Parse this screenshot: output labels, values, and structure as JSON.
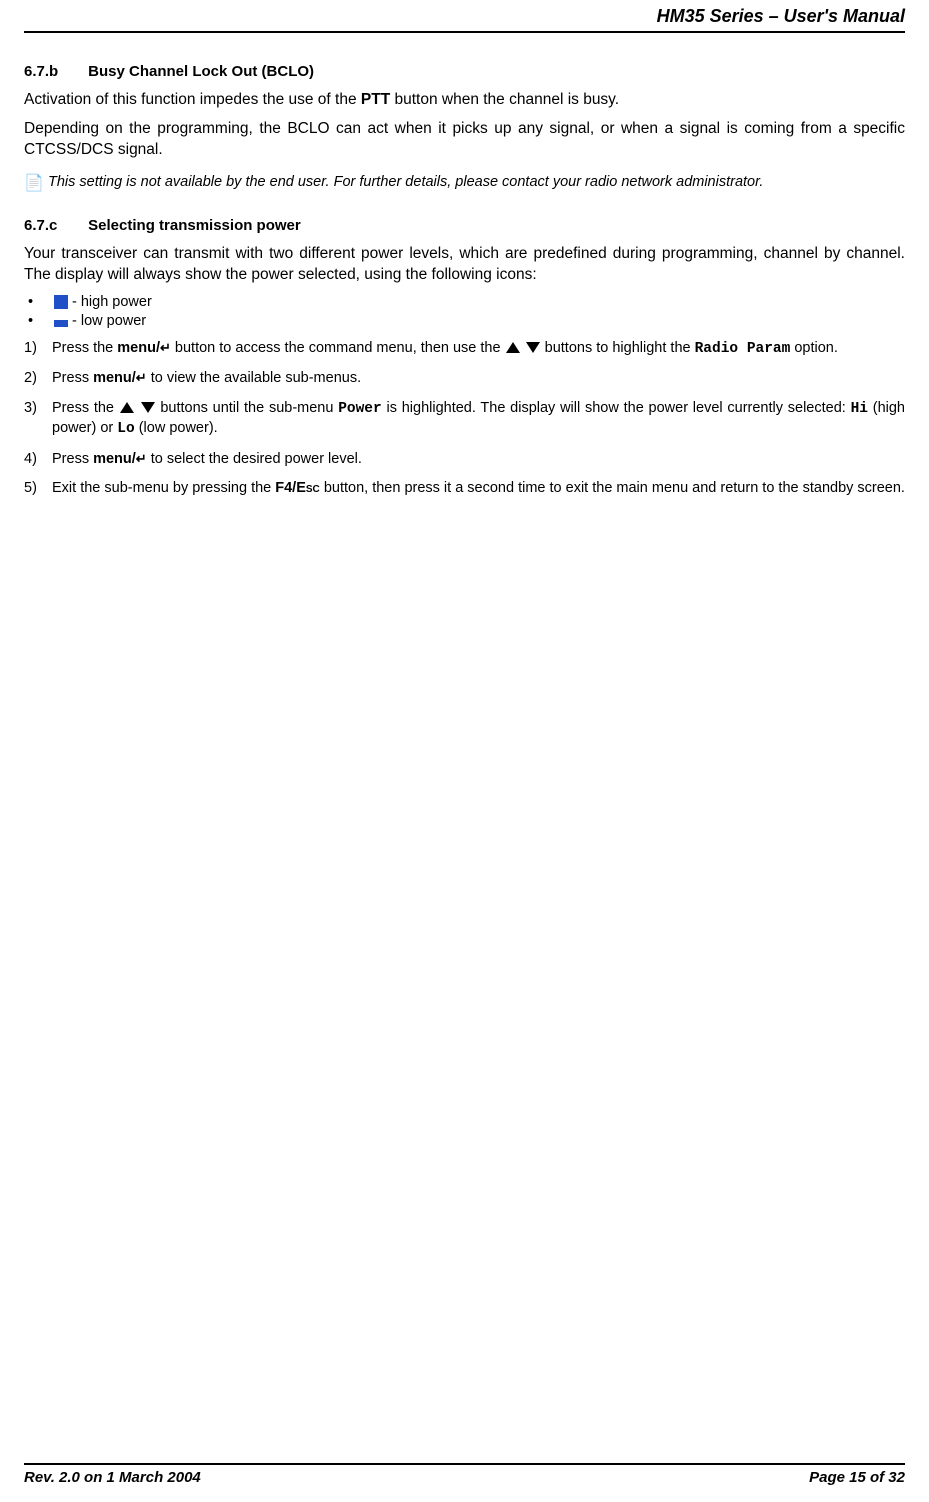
{
  "header": {
    "title": "HM35 Series – User's Manual"
  },
  "colors": {
    "icon_blue": "#2050c8",
    "text": "#000000",
    "background": "#ffffff",
    "rule": "#000000"
  },
  "sections": {
    "bclo": {
      "number": "6.7.b",
      "title": "Busy Channel Lock Out (BCLO)",
      "p1_a": "Activation of this function impedes the use of the ",
      "p1_ptt": "PTT",
      "p1_b": " button when the channel is busy.",
      "p2": "Depending on the programming, the BCLO can act when it picks up any signal, or when a signal is coming from a specific CTCSS/DCS signal.",
      "note_icon": "📄",
      "note": "This setting is not available by the end user.  For further details, please contact your radio network administrator."
    },
    "power": {
      "number": "6.7.c",
      "title": "Selecting transmission power",
      "intro": "Your transceiver can transmit with two different power levels, which are predefined during programming, channel by channel.  The display will always show the power selected, using the following icons:",
      "bullets": {
        "high": "- high power",
        "low": "- low power"
      },
      "steps": {
        "s1_a": "Press the ",
        "s1_menu": "menu/",
        "s1_enter": "↵",
        "s1_b": " button to access the command menu, then use the ",
        "s1_c": " buttons to highlight the ",
        "s1_radio": "Radio Param",
        "s1_d": " option.",
        "s2_a": "Press ",
        "s2_menu": "menu/",
        "s2_enter": "↵",
        "s2_b": " to view the available sub-menus.",
        "s3_a": "Press the ",
        "s3_b": " buttons until the sub-menu ",
        "s3_power": "Power",
        "s3_c": " is highlighted.  The display will show the power level currently selected: ",
        "s3_hi": "Hi",
        "s3_d": " (high power) or ",
        "s3_lo": "Lo",
        "s3_e": " (low power).",
        "s4_a": "Press ",
        "s4_menu": "menu/",
        "s4_enter": "↵",
        "s4_b": " to select the desired power level.",
        "s5_a": "Exit the sub-menu by pressing the ",
        "s5_f4": "F4/",
        "s5_esc": "Esc",
        "s5_b": " button, then press it a second time to exit the main menu and return to the standby screen."
      }
    }
  },
  "footer": {
    "left": "Rev. 2.0 on 1 March 2004",
    "right": "Page 15 of 32"
  }
}
